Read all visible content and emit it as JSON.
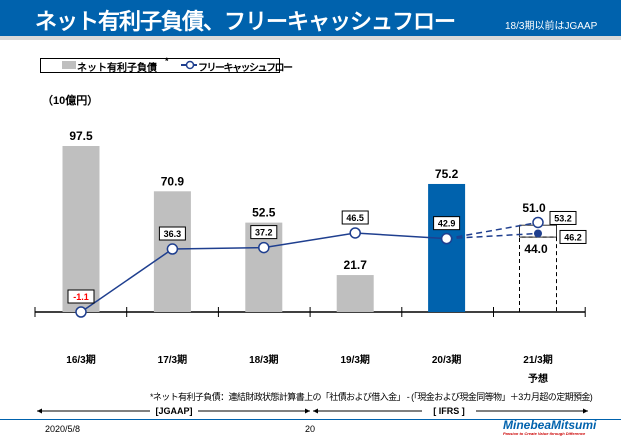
{
  "header": {
    "title": "ネット有利子負債、フリーキャッシュフロー",
    "note": "18/3期以前はJGAAP"
  },
  "footer": {
    "date": "2020/5/8",
    "page": "20",
    "logo": "MinebeaMitsumi",
    "tagline": "Passion to Create Value through Difference"
  },
  "chart_data": {
    "type": "bar+line",
    "unit": "（10億円）",
    "categories": [
      "16/3期",
      "17/3期",
      "18/3期",
      "19/3期",
      "20/3期",
      "21/3期"
    ],
    "forecast_label": "予想",
    "series": [
      {
        "name": "ネット有利子負債",
        "name_suffix": "*",
        "type": "bar",
        "values": [
          97.5,
          70.9,
          52.5,
          21.7,
          75.2,
          null
        ],
        "forecast_range": [
          44.0,
          51.0
        ],
        "color": "#bfbfbf",
        "highlight_color": "#0062ad",
        "highlight_index": 4
      },
      {
        "name": "フリーキャッシュフロー",
        "type": "line",
        "values": [
          -1.1,
          36.3,
          37.2,
          46.5,
          42.9,
          null
        ],
        "forecast_range": [
          46.2,
          53.2
        ],
        "color": "#1f3f8f",
        "negative_label_color": "#ff0000"
      }
    ],
    "bar_labels": [
      "97.5",
      "70.9",
      "52.5",
      "21.7",
      "75.2"
    ],
    "forecast_bar_labels": [
      "51.0",
      "44.0"
    ],
    "line_labels": [
      "-1.1",
      "36.3",
      "37.2",
      "46.5",
      "42.9"
    ],
    "forecast_line_labels": [
      "53.2",
      "46.2"
    ],
    "footnote": "*ネット有利子負債：連結財政状態計算書上の「社債および借入金」 - (「現金および現金同等物」＋3カ月超の定期預金)",
    "periods": [
      {
        "label": "[JGAAP]"
      },
      {
        "label": "[ IFRS ]"
      }
    ]
  }
}
